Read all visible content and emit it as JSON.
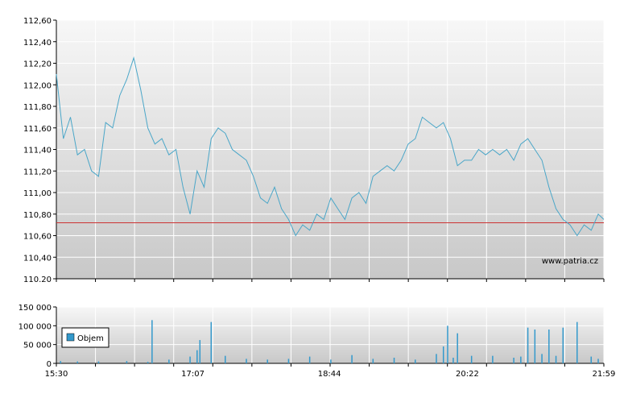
{
  "watermark": "www.patria.cz",
  "colors": {
    "line": "#4aa6c8",
    "reference": "#cc3333",
    "volume": "#3399cc",
    "grid": "#ffffff",
    "bg_top": "#f7f7f7",
    "bg_bottom": "#c8c8c8"
  },
  "chart_data": [
    {
      "type": "line",
      "title": "",
      "ylim": [
        110.2,
        112.6
      ],
      "y_ticks": [
        "112,60",
        "112,40",
        "112,20",
        "112,00",
        "111,80",
        "111,60",
        "111,40",
        "111,20",
        "111,00",
        "110,80",
        "110,60",
        "110,40",
        "110.20"
      ],
      "reference_value": 110.72,
      "x_range": [
        "15:30",
        "21:59"
      ],
      "series": [
        {
          "x": [
            "15:30",
            "15:35",
            "15:40",
            "15:45",
            "15:50",
            "15:55",
            "16:00",
            "16:05",
            "16:10",
            "16:15",
            "16:20",
            "16:25",
            "16:30",
            "16:35",
            "16:40",
            "16:45",
            "16:50",
            "16:55",
            "17:00",
            "17:05",
            "17:10",
            "17:15",
            "17:20",
            "17:25",
            "17:30",
            "17:35",
            "17:40",
            "17:45",
            "17:50",
            "17:55",
            "18:00",
            "18:05",
            "18:10",
            "18:15",
            "18:20",
            "18:25",
            "18:30",
            "18:35",
            "18:40",
            "18:45",
            "18:50",
            "18:55",
            "19:00",
            "19:05",
            "19:10",
            "19:15",
            "19:20",
            "19:25",
            "19:30",
            "19:35",
            "19:40",
            "19:45",
            "19:50",
            "19:55",
            "20:00",
            "20:05",
            "20:10",
            "20:15",
            "20:20",
            "20:25",
            "20:30",
            "20:35",
            "20:40",
            "20:45",
            "20:50",
            "20:55",
            "21:00",
            "21:05",
            "21:10",
            "21:15",
            "21:20",
            "21:25",
            "21:30",
            "21:35",
            "21:40",
            "21:45",
            "21:50",
            "21:55",
            "21:59"
          ],
          "values": [
            112.1,
            111.5,
            111.7,
            111.35,
            111.4,
            111.2,
            111.15,
            111.65,
            111.6,
            111.9,
            112.05,
            112.25,
            111.95,
            111.6,
            111.45,
            111.5,
            111.35,
            111.4,
            111.05,
            110.8,
            111.2,
            111.05,
            111.5,
            111.6,
            111.55,
            111.4,
            111.35,
            111.3,
            111.15,
            110.95,
            110.9,
            111.05,
            110.85,
            110.75,
            110.6,
            110.7,
            110.65,
            110.8,
            110.75,
            110.95,
            110.85,
            110.75,
            110.95,
            111.0,
            110.9,
            111.15,
            111.2,
            111.25,
            111.2,
            111.3,
            111.45,
            111.5,
            111.7,
            111.65,
            111.6,
            111.65,
            111.5,
            111.25,
            111.3,
            111.3,
            111.4,
            111.35,
            111.4,
            111.35,
            111.4,
            111.3,
            111.45,
            111.5,
            111.4,
            111.3,
            111.05,
            110.85,
            110.75,
            110.7,
            110.6,
            110.7,
            110.65,
            110.8,
            110.75
          ]
        }
      ]
    },
    {
      "type": "bar",
      "title": "",
      "ylim": [
        0,
        150000
      ],
      "y_ticks": [
        "150 000",
        "100 000",
        "50 000",
        "0"
      ],
      "x_ticks": [
        "15:30",
        "17:07",
        "18:44",
        "20:22",
        "21:59"
      ],
      "legend": "Objem",
      "legend_position": "left",
      "series": [
        {
          "name": "Objem",
          "x": [
            "15:33",
            "15:45",
            "16:00",
            "16:20",
            "16:35",
            "16:38",
            "16:50",
            "17:05",
            "17:10",
            "17:12",
            "17:20",
            "17:30",
            "17:45",
            "18:00",
            "18:15",
            "18:30",
            "18:45",
            "19:00",
            "19:15",
            "19:30",
            "19:45",
            "20:00",
            "20:05",
            "20:08",
            "20:12",
            "20:15",
            "20:25",
            "20:40",
            "20:55",
            "21:00",
            "21:05",
            "21:10",
            "21:15",
            "21:20",
            "21:25",
            "21:30",
            "21:40",
            "21:50",
            "21:55"
          ],
          "values": [
            6000,
            5000,
            5000,
            6000,
            4000,
            115000,
            10000,
            18000,
            35000,
            62000,
            110000,
            20000,
            12000,
            10000,
            12000,
            18000,
            10000,
            22000,
            12000,
            15000,
            10000,
            25000,
            45000,
            100000,
            15000,
            80000,
            20000,
            20000,
            15000,
            18000,
            95000,
            90000,
            25000,
            90000,
            20000,
            95000,
            110000,
            18000,
            12000
          ]
        }
      ]
    }
  ]
}
